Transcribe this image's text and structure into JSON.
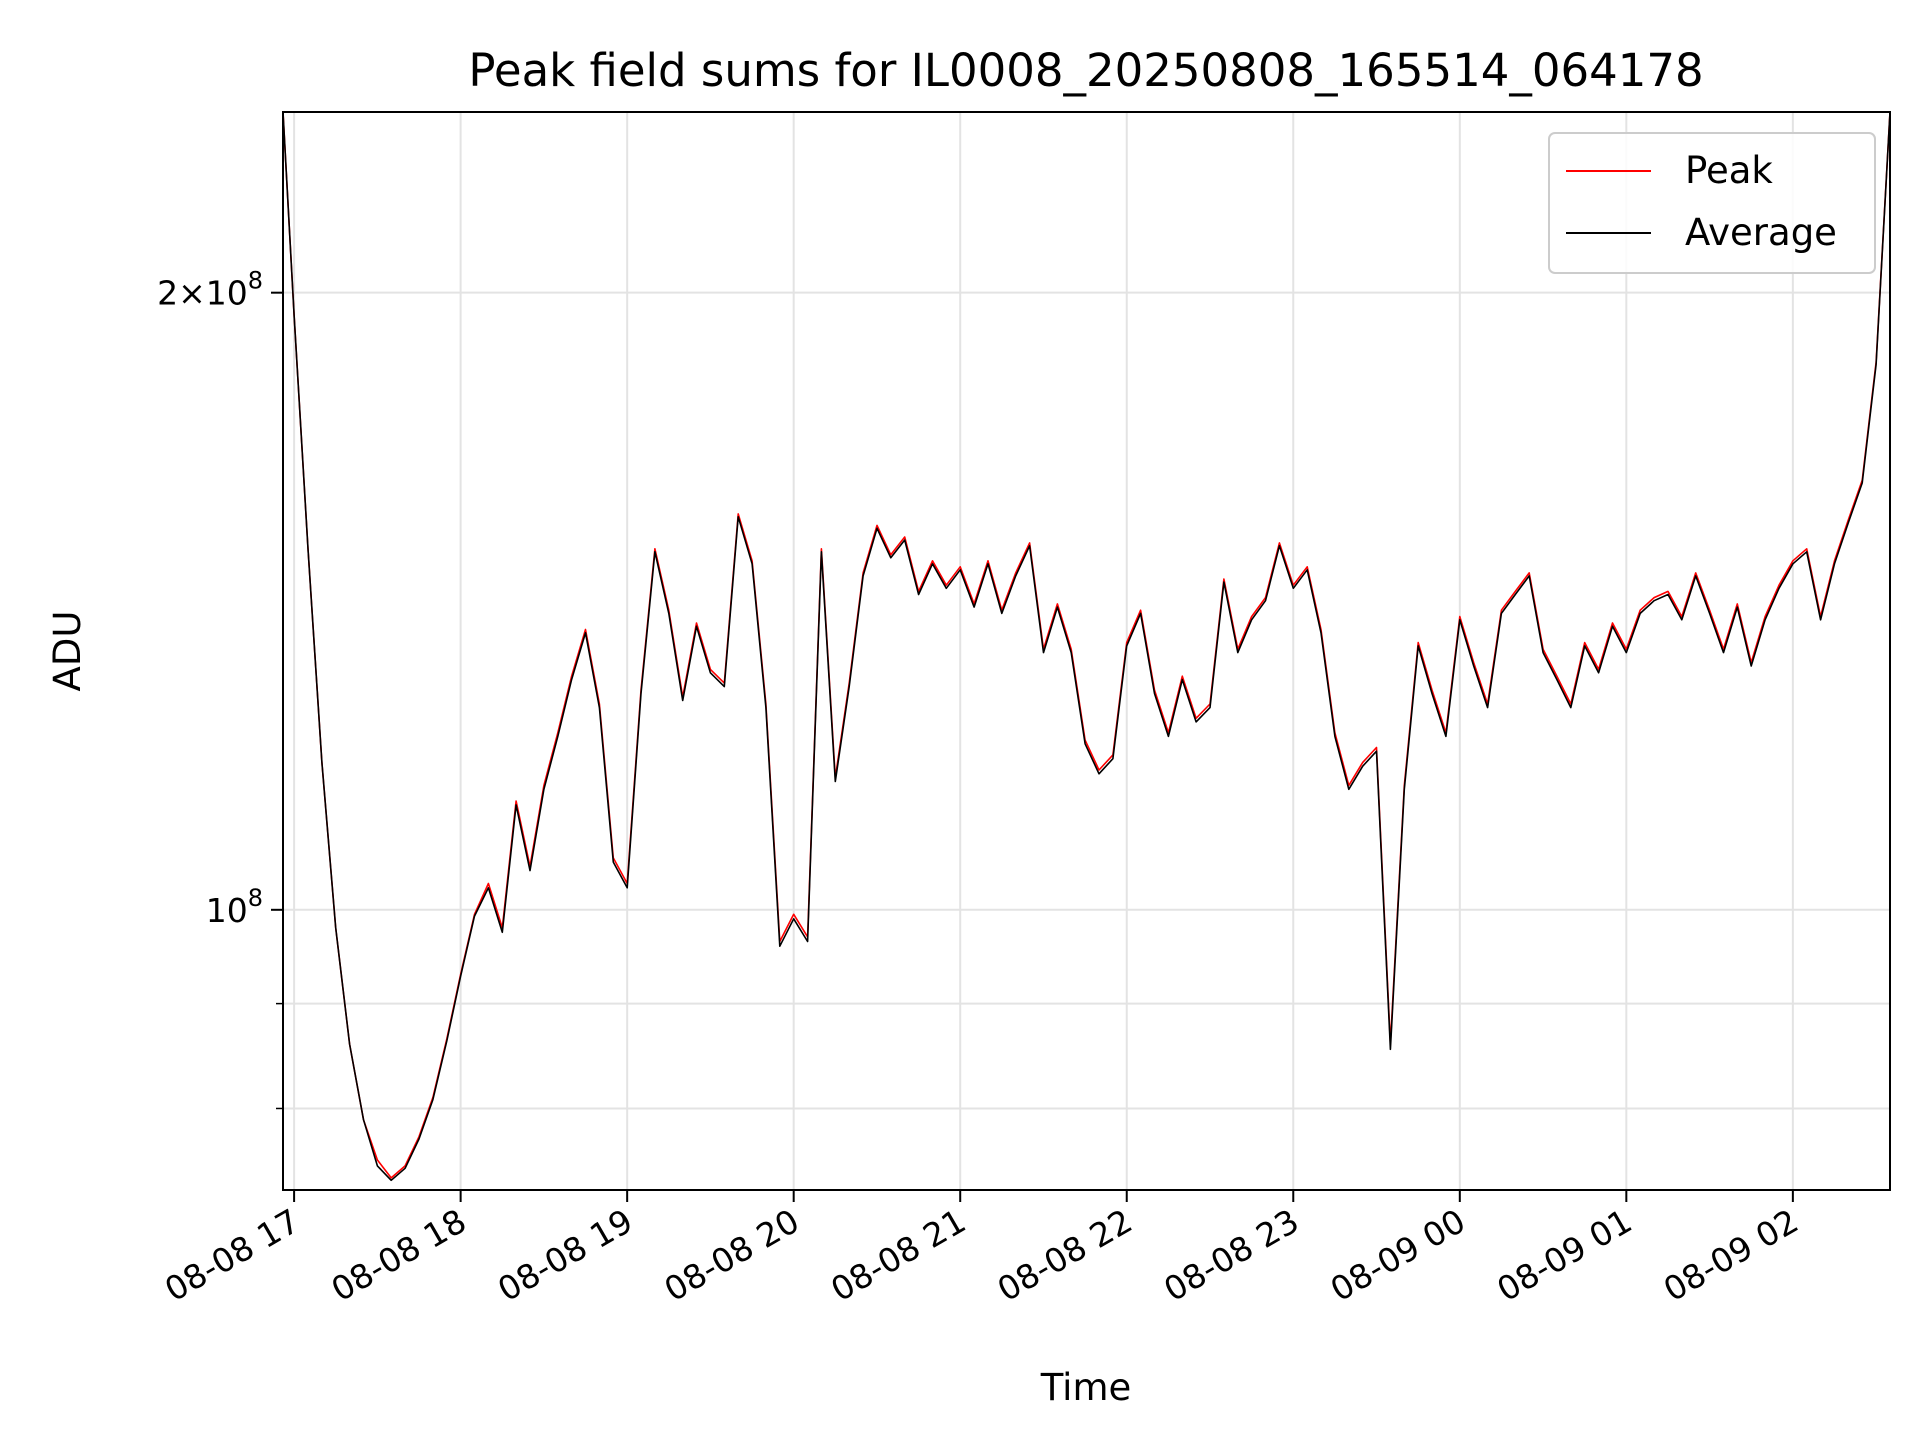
{
  "chart_data": {
    "type": "line",
    "title": "Peak field sums for IL0008_20250808_165514_064178",
    "xlabel": "Time",
    "ylabel": "ADU",
    "yscale": "log",
    "xlim": [
      "2025-08-08 16:56",
      "2025-08-09 02:35"
    ],
    "ylim": [
      73000000,
      245000000
    ],
    "grid": true,
    "legend": "upper right",
    "x_ticks": [
      "08-08 17",
      "08-08 18",
      "08-08 19",
      "08-08 20",
      "08-08 21",
      "08-08 22",
      "08-08 23",
      "08-09 00",
      "08-09 01",
      "08-09 02"
    ],
    "y_tick_labels": [
      {
        "value": 100000000,
        "label": "10^8"
      },
      {
        "value": 200000000,
        "label": "2×10^8"
      }
    ],
    "x_points": [
      "2025-08-08 16:56",
      "2025-08-08 17:00",
      "2025-08-08 17:05",
      "2025-08-08 17:10",
      "2025-08-08 17:15",
      "2025-08-08 17:20",
      "2025-08-08 17:25",
      "2025-08-08 17:30",
      "2025-08-08 17:35",
      "2025-08-08 17:40",
      "2025-08-08 17:45",
      "2025-08-08 17:50",
      "2025-08-08 17:55",
      "2025-08-08 18:00",
      "2025-08-08 18:05",
      "2025-08-08 18:10",
      "2025-08-08 18:15",
      "2025-08-08 18:20",
      "2025-08-08 18:25",
      "2025-08-08 18:30",
      "2025-08-08 18:35",
      "2025-08-08 18:40",
      "2025-08-08 18:45",
      "2025-08-08 18:50",
      "2025-08-08 18:55",
      "2025-08-08 19:00",
      "2025-08-08 19:05",
      "2025-08-08 19:10",
      "2025-08-08 19:15",
      "2025-08-08 19:20",
      "2025-08-08 19:25",
      "2025-08-08 19:30",
      "2025-08-08 19:35",
      "2025-08-08 19:40",
      "2025-08-08 19:45",
      "2025-08-08 19:50",
      "2025-08-08 19:55",
      "2025-08-08 20:00",
      "2025-08-08 20:05",
      "2025-08-08 20:10",
      "2025-08-08 20:15",
      "2025-08-08 20:20",
      "2025-08-08 20:25",
      "2025-08-08 20:30",
      "2025-08-08 20:35",
      "2025-08-08 20:40",
      "2025-08-08 20:45",
      "2025-08-08 20:50",
      "2025-08-08 20:55",
      "2025-08-08 21:00",
      "2025-08-08 21:05",
      "2025-08-08 21:10",
      "2025-08-08 21:15",
      "2025-08-08 21:20",
      "2025-08-08 21:25",
      "2025-08-08 21:30",
      "2025-08-08 21:35",
      "2025-08-08 21:40",
      "2025-08-08 21:45",
      "2025-08-08 21:50",
      "2025-08-08 21:55",
      "2025-08-08 22:00",
      "2025-08-08 22:05",
      "2025-08-08 22:10",
      "2025-08-08 22:15",
      "2025-08-08 22:20",
      "2025-08-08 22:25",
      "2025-08-08 22:30",
      "2025-08-08 22:35",
      "2025-08-08 22:40",
      "2025-08-08 22:45",
      "2025-08-08 22:50",
      "2025-08-08 22:55",
      "2025-08-08 23:00",
      "2025-08-08 23:05",
      "2025-08-08 23:10",
      "2025-08-08 23:15",
      "2025-08-08 23:20",
      "2025-08-08 23:25",
      "2025-08-08 23:30",
      "2025-08-08 23:35",
      "2025-08-08 23:40",
      "2025-08-08 23:45",
      "2025-08-08 23:50",
      "2025-08-08 23:55",
      "2025-08-09 00:00",
      "2025-08-09 00:05",
      "2025-08-09 00:10",
      "2025-08-09 00:15",
      "2025-08-09 00:20",
      "2025-08-09 00:25",
      "2025-08-09 00:30",
      "2025-08-09 00:35",
      "2025-08-09 00:40",
      "2025-08-09 00:45",
      "2025-08-09 00:50",
      "2025-08-09 00:55",
      "2025-08-09 01:00",
      "2025-08-09 01:05",
      "2025-08-09 01:10",
      "2025-08-09 01:15",
      "2025-08-09 01:20",
      "2025-08-09 01:25",
      "2025-08-09 01:30",
      "2025-08-09 01:35",
      "2025-08-09 01:40",
      "2025-08-09 01:45",
      "2025-08-09 01:50",
      "2025-08-09 01:55",
      "2025-08-09 02:00",
      "2025-08-09 02:05",
      "2025-08-09 02:10",
      "2025-08-09 02:15",
      "2025-08-09 02:20",
      "2025-08-09 02:25",
      "2025-08-09 02:30",
      "2025-08-09 02:35"
    ],
    "series": [
      {
        "name": "Peak",
        "color": "#ff0000",
        "values": [
          245000000,
          195000000,
          150000000,
          118000000,
          98000000,
          86000000,
          79000000,
          75500000,
          74000000,
          75000000,
          77500000,
          81000000,
          86500000,
          93000000,
          99500000,
          103000000,
          98000000,
          113000000,
          105000000,
          115000000,
          122000000,
          130000000,
          137000000,
          126000000,
          106000000,
          103000000,
          128000000,
          150000000,
          140000000,
          127000000,
          138000000,
          131000000,
          129000000,
          156000000,
          148000000,
          126000000,
          96500000,
          99500000,
          97000000,
          150000000,
          116000000,
          129000000,
          146000000,
          154000000,
          149000000,
          152000000,
          143000000,
          148000000,
          144000000,
          147000000,
          141000000,
          148000000,
          140000000,
          146000000,
          151000000,
          134000000,
          141000000,
          134000000,
          121000000,
          117000000,
          119000000,
          135000000,
          140000000,
          128000000,
          122000000,
          130000000,
          124000000,
          126000000,
          145000000,
          134000000,
          139000000,
          142000000,
          151000000,
          144000000,
          147000000,
          137000000,
          122000000,
          115000000,
          118000000,
          120000000,
          86000000,
          115000000,
          135000000,
          128000000,
          122000000,
          139000000,
          132000000,
          126000000,
          140000000,
          143000000,
          146000000,
          134000000,
          130000000,
          126000000,
          135000000,
          131000000,
          138000000,
          134000000,
          140000000,
          142000000,
          143000000,
          139000000,
          146000000,
          140000000,
          134000000,
          141000000,
          132000000,
          139000000,
          144000000,
          148000000,
          150000000,
          139000000,
          148000000,
          155000000,
          162000000,
          185000000,
          245000000
        ]
      },
      {
        "name": "Average",
        "color": "#000000",
        "values": [
          245000000,
          195000000,
          150000000,
          118000000,
          98000000,
          86000000,
          79000000,
          75000000,
          73800000,
          74800000,
          77300000,
          80800000,
          86300000,
          92800000,
          99300000,
          102500000,
          97500000,
          112500000,
          104500000,
          114500000,
          121500000,
          129500000,
          136500000,
          125500000,
          105500000,
          102500000,
          127500000,
          149500000,
          139500000,
          126500000,
          137500000,
          130500000,
          128500000,
          155500000,
          147500000,
          125500000,
          96000000,
          99000000,
          96500000,
          149500000,
          115500000,
          128500000,
          145500000,
          153500000,
          148500000,
          151500000,
          142500000,
          147500000,
          143500000,
          146500000,
          140500000,
          147500000,
          139500000,
          145500000,
          150500000,
          133500000,
          140500000,
          133500000,
          120500000,
          116500000,
          118500000,
          134500000,
          139500000,
          127500000,
          121500000,
          129500000,
          123500000,
          125500000,
          144500000,
          133500000,
          138500000,
          141500000,
          150500000,
          143500000,
          146500000,
          136500000,
          121500000,
          114500000,
          117500000,
          119500000,
          85500000,
          114500000,
          134500000,
          127500000,
          121500000,
          138500000,
          131500000,
          125500000,
          139500000,
          142500000,
          145500000,
          133500000,
          129500000,
          125500000,
          134500000,
          130500000,
          137500000,
          133500000,
          139500000,
          141500000,
          142500000,
          138500000,
          145500000,
          139500000,
          133500000,
          140500000,
          131500000,
          138500000,
          143500000,
          147500000,
          149500000,
          138500000,
          147500000,
          154500000,
          161500000,
          184500000,
          245000000
        ]
      }
    ]
  }
}
